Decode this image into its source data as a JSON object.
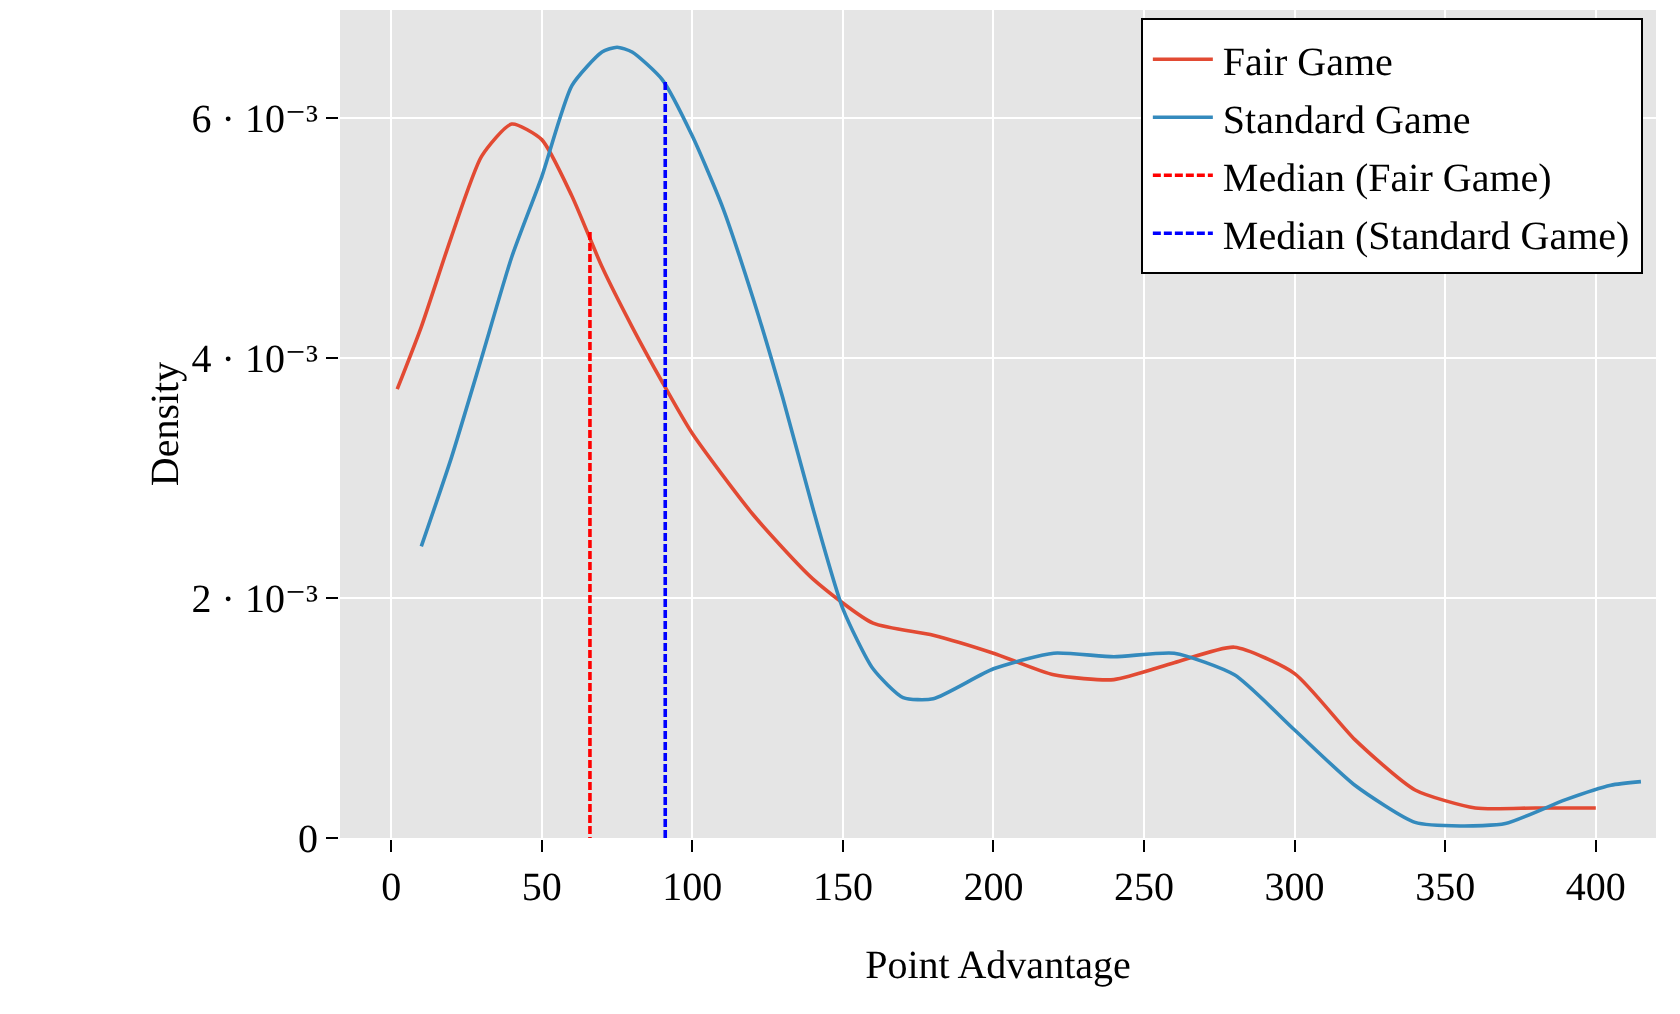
{
  "chart_data": {
    "type": "line",
    "xlabel": "Point Advantage",
    "ylabel": "Density",
    "xlim": [
      -17,
      420
    ],
    "ylim": [
      0,
      0.0069
    ],
    "xticks": [
      0,
      50,
      100,
      150,
      200,
      250,
      300,
      350,
      400
    ],
    "yticks": [
      0,
      {
        "value": 0.002,
        "label": "2 · 10⁻³"
      },
      {
        "value": 0.004,
        "label": "4 · 10⁻³"
      },
      {
        "value": 0.006,
        "label": "6 · 10⁻³"
      }
    ],
    "grid": true,
    "legend": "top right",
    "marker": "none",
    "series": [
      {
        "name": "Fair Game",
        "color": "#e24a33",
        "line_style": "solid",
        "x": [
          2,
          10,
          20,
          30,
          40,
          50,
          60,
          70,
          80,
          90,
          100,
          120,
          140,
          160,
          180,
          200,
          220,
          240,
          260,
          280,
          300,
          320,
          340,
          360,
          380,
          400
        ],
        "values": [
          0.00374,
          0.00426,
          0.00501,
          0.00568,
          0.00595,
          0.00582,
          0.00535,
          0.00476,
          0.00426,
          0.0038,
          0.00337,
          0.0027,
          0.00216,
          0.00179,
          0.00169,
          0.00154,
          0.00136,
          0.00132,
          0.00146,
          0.00159,
          0.00137,
          0.00082,
          0.0004,
          0.00025,
          0.00025,
          0.00025
        ]
      },
      {
        "name": "Standard Game",
        "color": "#348abd",
        "line_style": "solid",
        "x": [
          10,
          20,
          30,
          40,
          50,
          60,
          70,
          75,
          80,
          90,
          100,
          110,
          120,
          130,
          140,
          150,
          160,
          170,
          180,
          200,
          220,
          240,
          260,
          280,
          300,
          320,
          340,
          355,
          370,
          390,
          405,
          415
        ],
        "values": [
          0.00243,
          0.00317,
          0.004,
          0.00484,
          0.00551,
          0.00627,
          0.00655,
          0.00659,
          0.00655,
          0.00632,
          0.00585,
          0.00526,
          0.00451,
          0.00367,
          0.00275,
          0.00191,
          0.00141,
          0.00117,
          0.00116,
          0.00141,
          0.00154,
          0.00151,
          0.00154,
          0.00136,
          0.0009,
          0.00044,
          0.00013,
          0.0001,
          0.00012,
          0.00032,
          0.00044,
          0.00047
        ]
      },
      {
        "name": "Median (Fair Game)",
        "color": "#ff0000",
        "line_style": "dashed",
        "x": [
          66,
          66
        ],
        "values": [
          0.00505,
          0
        ]
      },
      {
        "name": "Median (Standard Game)",
        "color": "#0000ff",
        "line_style": "dashed",
        "x": [
          91,
          91
        ],
        "values": [
          0.0063,
          0
        ]
      }
    ]
  }
}
